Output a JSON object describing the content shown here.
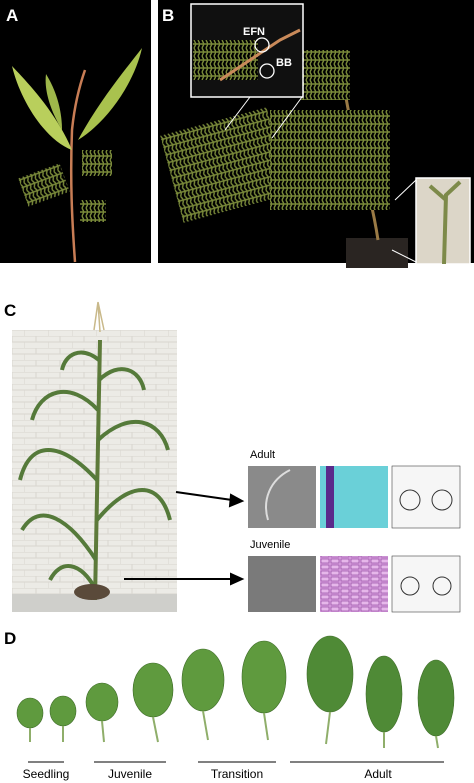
{
  "panels": [
    {
      "label": "A"
    },
    {
      "label": "B",
      "annotations": [
        "EFN",
        "BB"
      ]
    },
    {
      "label": "C",
      "annotations": [
        "Adult",
        "Juvenile"
      ]
    },
    {
      "label": "D",
      "stages": [
        "Seedling",
        "Juvenile",
        "Transition",
        "Adult"
      ]
    }
  ]
}
